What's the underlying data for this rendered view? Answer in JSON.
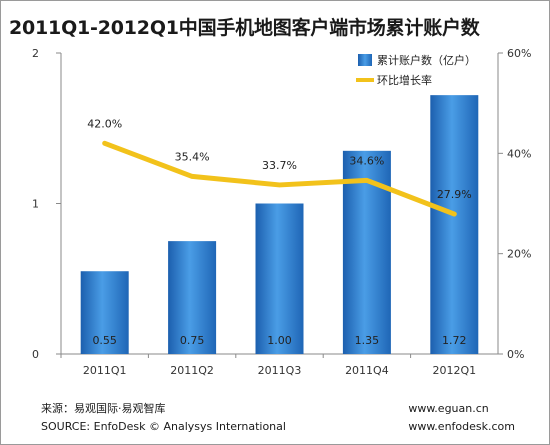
{
  "chart_data": {
    "type": "bar",
    "title": "2011Q1-2012Q1中国手机地图客户端市场累计账户数",
    "categories": [
      "2011Q1",
      "2011Q2",
      "2011Q3",
      "2011Q4",
      "2012Q1"
    ],
    "series": [
      {
        "name": "累计账户数（亿户）",
        "type": "bar",
        "axis": "left",
        "values": [
          0.55,
          0.75,
          1.0,
          1.35,
          1.72
        ],
        "labels": [
          "0.55",
          "0.75",
          "1.00",
          "1.35",
          "1.72"
        ],
        "color": "#2f86d6"
      },
      {
        "name": "环比增长率",
        "type": "line",
        "axis": "right",
        "values": [
          42.0,
          35.4,
          33.7,
          34.6,
          27.9
        ],
        "labels": [
          "42.0%",
          "35.4%",
          "33.7%",
          "34.6%",
          "27.9%"
        ],
        "color": "#f2c21b"
      }
    ],
    "y_left": {
      "ticks": [
        "0",
        "1",
        "2"
      ],
      "ylim": [
        0,
        2
      ]
    },
    "y_right": {
      "ticks": [
        "0%",
        "20%",
        "40%",
        "60%"
      ],
      "ylim": [
        0,
        60
      ]
    },
    "grid": false,
    "legend_position": "top-right"
  },
  "footer": {
    "source_cn": "来源：易观国际·易观智库",
    "source_en": "SOURCE: EnfoDesk © Analysys International",
    "url1": "www.eguan.cn",
    "url2": "www.enfodesk.com"
  }
}
